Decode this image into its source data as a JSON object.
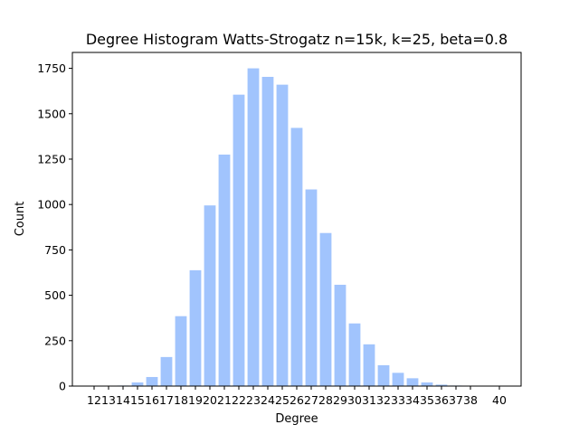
{
  "chart_data": {
    "type": "bar",
    "title": "Degree Histogram Watts-Strogatz n=15k, k=25, beta=0.8",
    "xlabel": "Degree",
    "ylabel": "Count",
    "x": [
      13,
      14,
      15,
      16,
      17,
      18,
      19,
      20,
      21,
      22,
      23,
      24,
      25,
      26,
      27,
      28,
      29,
      30,
      31,
      32,
      33,
      34,
      35,
      36,
      37,
      38,
      40
    ],
    "values": [
      1,
      3,
      20,
      50,
      160,
      385,
      638,
      995,
      1275,
      1605,
      1750,
      1703,
      1660,
      1422,
      1083,
      843,
      558,
      345,
      230,
      115,
      73,
      43,
      20,
      8,
      3,
      1,
      1
    ],
    "x_ticks": [
      "12",
      "13",
      "14",
      "15",
      "16",
      "17",
      "18",
      "19",
      "20",
      "21",
      "22",
      "23",
      "24",
      "25",
      "26",
      "27",
      "28",
      "29",
      "30",
      "31",
      "32",
      "33",
      "34",
      "35",
      "36",
      "37",
      "38",
      "40"
    ],
    "y_ticks": [
      "0",
      "250",
      "500",
      "750",
      "1000",
      "1250",
      "1500",
      "1750"
    ],
    "xlim": [
      10.5,
      41.5
    ],
    "ylim": [
      0,
      1837.5
    ],
    "grid": false,
    "colors": {
      "bar": "#a1c4fd",
      "axis": "#000000",
      "background": "#ffffff"
    }
  }
}
